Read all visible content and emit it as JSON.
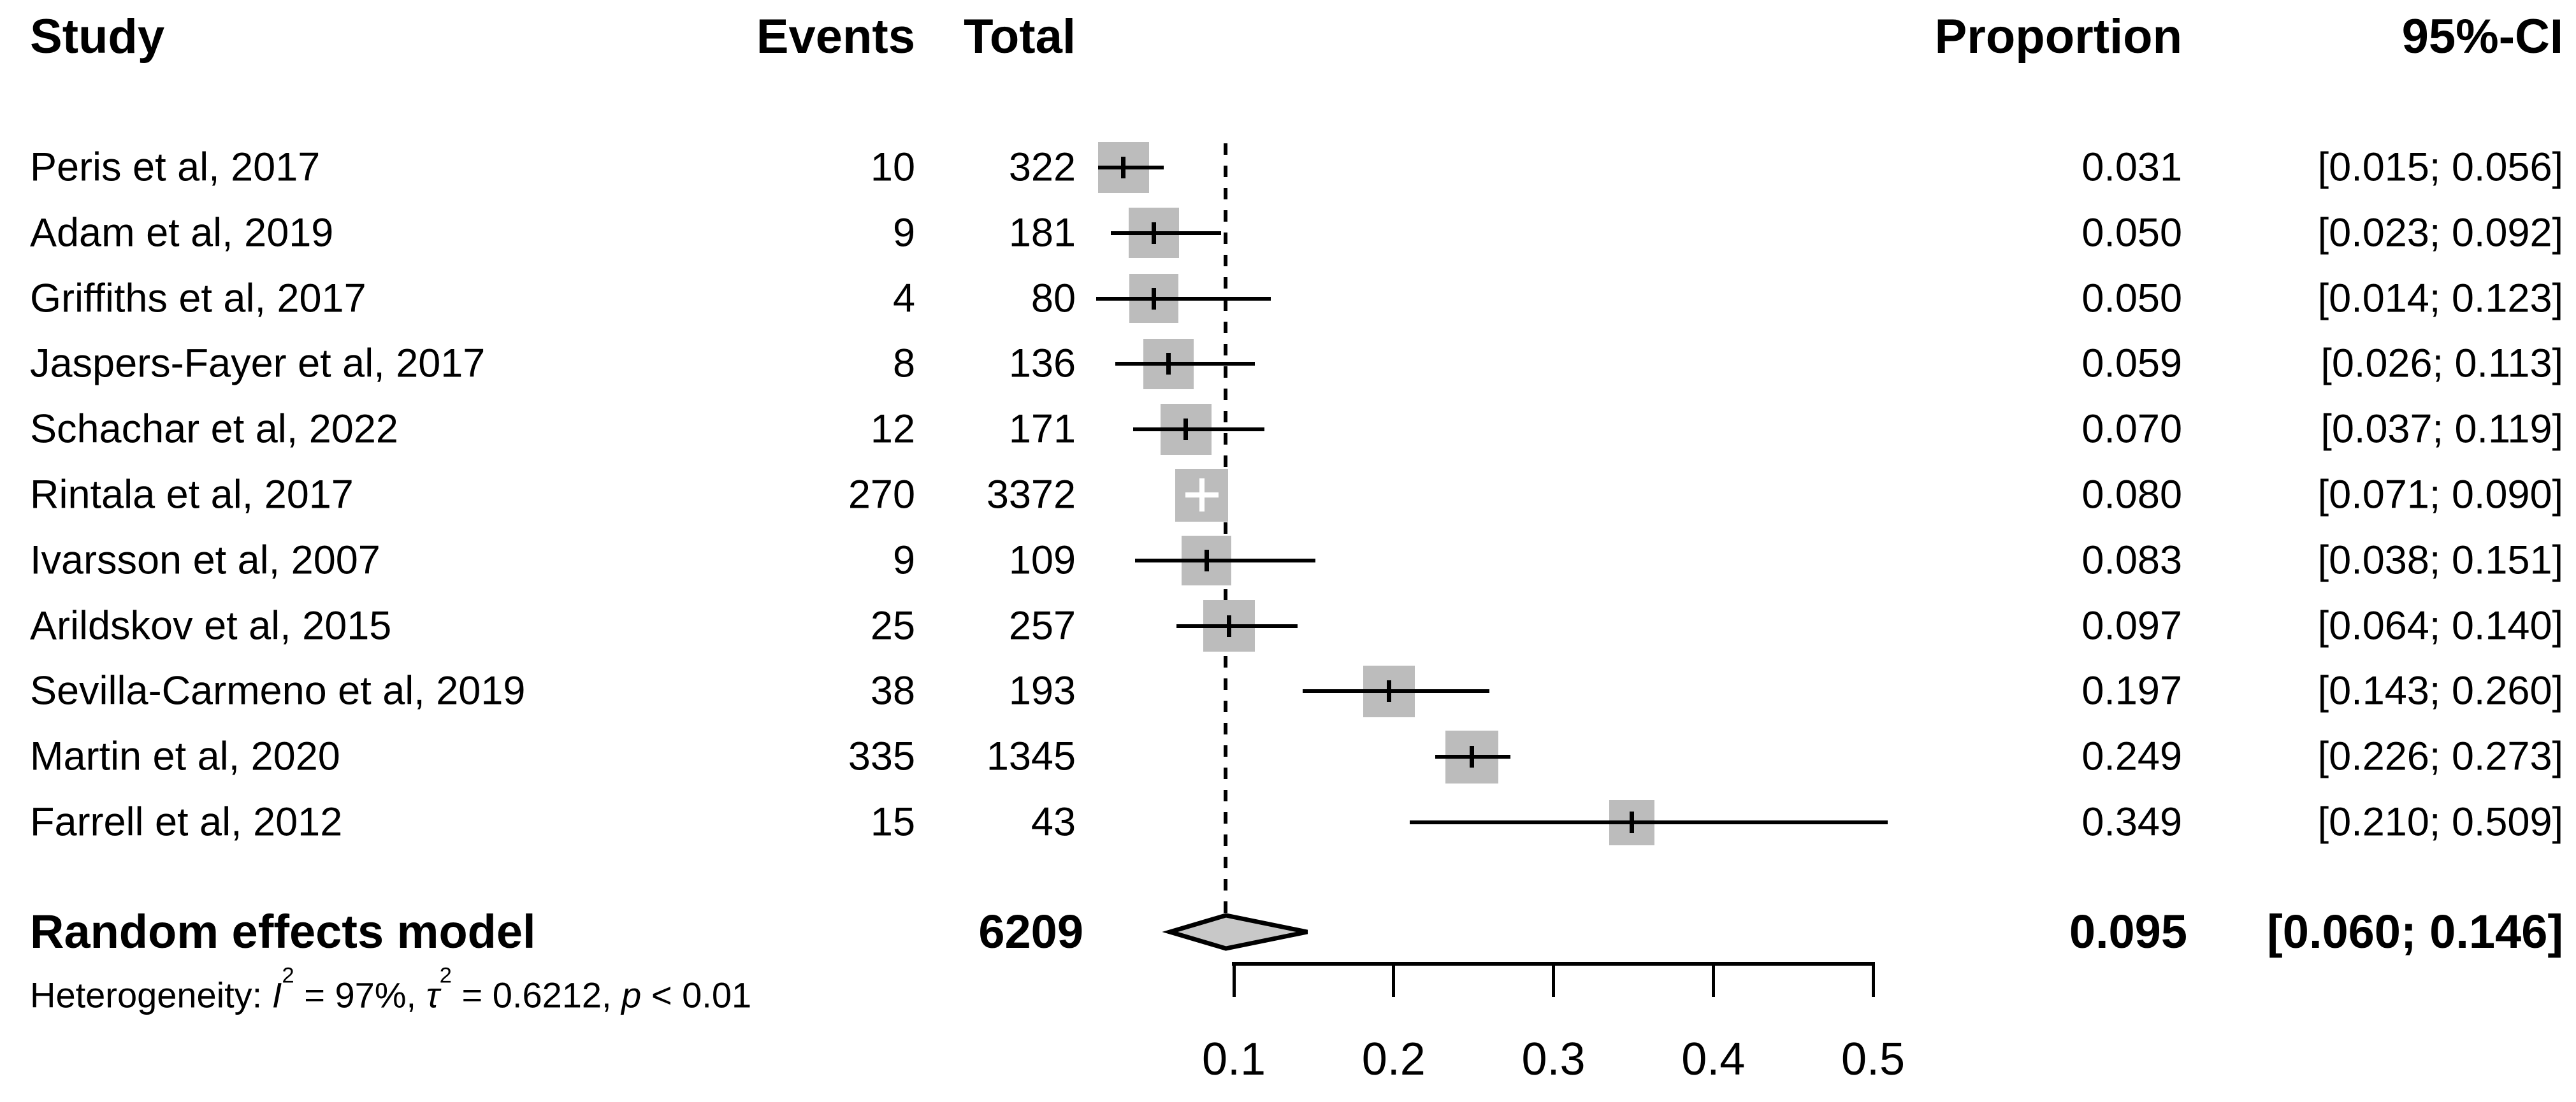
{
  "header": {
    "study": "Study",
    "events": "Events",
    "total": "Total",
    "proportion": "Proportion",
    "ci": "95%-CI"
  },
  "chart_data": {
    "type": "forest",
    "orientation": "horizontal",
    "studies": [
      {
        "name": "Peris et al, 2017",
        "events": "10",
        "total": "322",
        "proportion": "0.031",
        "value": 0.031,
        "ci_lower": 0.015,
        "ci_upper": 0.056,
        "ci": "[0.015; 0.056]",
        "square": 80,
        "marker": "black"
      },
      {
        "name": "Adam et al, 2019",
        "events": "9",
        "total": "181",
        "proportion": "0.050",
        "value": 0.05,
        "ci_lower": 0.023,
        "ci_upper": 0.092,
        "ci": "[0.023; 0.092]",
        "square": 79,
        "marker": "black"
      },
      {
        "name": "Griffiths et al, 2017",
        "events": "4",
        "total": "80",
        "proportion": "0.050",
        "value": 0.05,
        "ci_lower": 0.014,
        "ci_upper": 0.123,
        "ci": "[0.014; 0.123]",
        "square": 77,
        "marker": "black"
      },
      {
        "name": "Jaspers-Fayer et al, 2017",
        "events": "8",
        "total": "136",
        "proportion": "0.059",
        "value": 0.059,
        "ci_lower": 0.026,
        "ci_upper": 0.113,
        "ci": "[0.026; 0.113]",
        "square": 79,
        "marker": "black"
      },
      {
        "name": "Schachar et al, 2022",
        "events": "12",
        "total": "171",
        "proportion": "0.070",
        "value": 0.07,
        "ci_lower": 0.037,
        "ci_upper": 0.119,
        "ci": "[0.037; 0.119]",
        "square": 80,
        "marker": "black"
      },
      {
        "name": "Rintala et al, 2017",
        "events": "270",
        "total": "3372",
        "proportion": "0.080",
        "value": 0.08,
        "ci_lower": 0.071,
        "ci_upper": 0.09,
        "ci": "[0.071; 0.090]",
        "square": 83,
        "marker": "white"
      },
      {
        "name": "Ivarsson et al, 2007",
        "events": "9",
        "total": "109",
        "proportion": "0.083",
        "value": 0.083,
        "ci_lower": 0.038,
        "ci_upper": 0.151,
        "ci": "[0.038; 0.151]",
        "square": 78,
        "marker": "black"
      },
      {
        "name": "Arildskov et al, 2015",
        "events": "25",
        "total": "257",
        "proportion": "0.097",
        "value": 0.097,
        "ci_lower": 0.064,
        "ci_upper": 0.14,
        "ci": "[0.064; 0.140]",
        "square": 81,
        "marker": "black"
      },
      {
        "name": "Sevilla-Carmeno et al, 2019",
        "events": "38",
        "total": "193",
        "proportion": "0.197",
        "value": 0.197,
        "ci_lower": 0.143,
        "ci_upper": 0.26,
        "ci": "[0.143; 0.260]",
        "square": 81,
        "marker": "black"
      },
      {
        "name": "Martin et al, 2020",
        "events": "335",
        "total": "1345",
        "proportion": "0.249",
        "value": 0.249,
        "ci_lower": 0.226,
        "ci_upper": 0.273,
        "ci": "[0.226; 0.273]",
        "square": 83,
        "marker": "black"
      },
      {
        "name": "Farrell et al, 2012",
        "events": "15",
        "total": "43",
        "proportion": "0.349",
        "value": 0.349,
        "ci_lower": 0.21,
        "ci_upper": 0.509,
        "ci": "[0.210; 0.509]",
        "square": 71,
        "marker": "black"
      }
    ],
    "pooled": {
      "label": "Random effects model",
      "total": "6209",
      "proportion": "0.095",
      "value": 0.095,
      "ci_lower": 0.06,
      "ci_upper": 0.146,
      "ci": "[0.060; 0.146]"
    },
    "heterogeneity": {
      "prefix": "Heterogeneity: ",
      "i_sym": "I",
      "i_sup": "2",
      "i_rest": " = 97%, ",
      "tau_sym": "τ",
      "tau_sup": "2",
      "tau_rest": " = 0.6212, ",
      "p_sym": "p",
      "p_rest": " < 0.01"
    },
    "axis": {
      "tick_labels": [
        "0.1",
        "0.2",
        "0.3",
        "0.4",
        "0.5"
      ],
      "tick_values": [
        0.1,
        0.2,
        0.3,
        0.4,
        0.5
      ],
      "min": 0.1,
      "max": 0.5,
      "reference_value": 0.095
    }
  },
  "colors": {
    "square": "#bcbcbc",
    "diamond": "#c8c8c8",
    "line": "#000000",
    "white_marker": "#ffffff",
    "background": "#ffffff",
    "text": "#000000"
  }
}
